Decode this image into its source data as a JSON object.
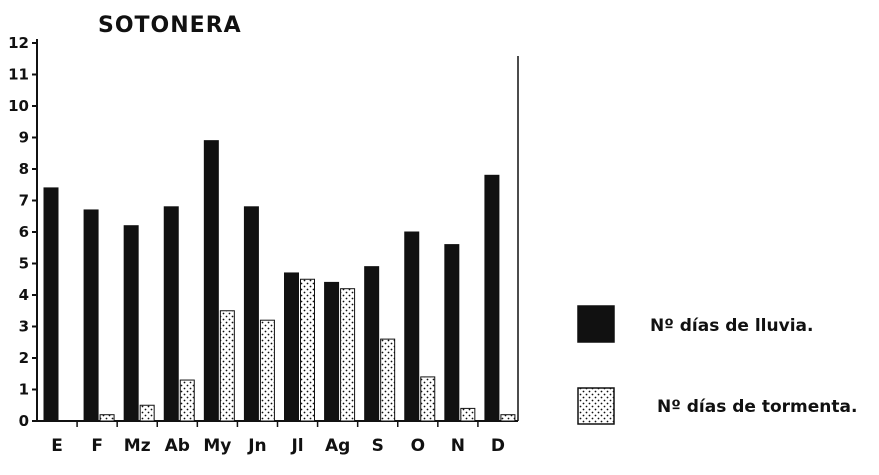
{
  "chart_data": {
    "type": "bar",
    "title": "SOTONERA",
    "categories": [
      "E",
      "F",
      "Mz",
      "Ab",
      "My",
      "Jn",
      "Jl",
      "Ag",
      "S",
      "O",
      "N",
      "D"
    ],
    "series": [
      {
        "name": "Nº días de lluvia.",
        "color": "#111111",
        "pattern": "solid",
        "values": [
          7.4,
          6.7,
          6.2,
          6.8,
          8.9,
          6.8,
          4.7,
          4.4,
          4.9,
          6.0,
          5.6,
          7.8
        ]
      },
      {
        "name": "Nº días de tormenta.",
        "color": "#ffffff",
        "pattern": "dotted",
        "values": [
          0.0,
          0.2,
          0.5,
          1.3,
          3.5,
          3.2,
          4.5,
          4.2,
          2.6,
          1.4,
          0.4,
          0.2
        ]
      }
    ],
    "yticks": [
      "0",
      "1",
      "2",
      "3",
      "4",
      "5",
      "6",
      "7",
      "8",
      "9",
      "10",
      "11",
      "12"
    ],
    "ylim": [
      0,
      12
    ],
    "grid": false,
    "legend_position": "right"
  }
}
